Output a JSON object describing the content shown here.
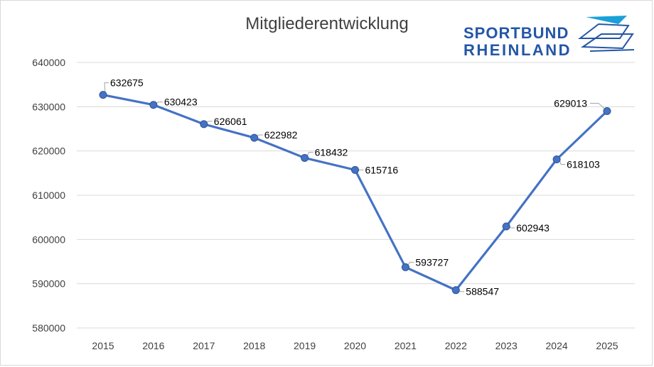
{
  "chart_data": {
    "type": "line",
    "title": "Mitgliederentwicklung",
    "xlabel": "",
    "ylabel": "",
    "categories": [
      "2015",
      "2016",
      "2017",
      "2018",
      "2019",
      "2020",
      "2021",
      "2022",
      "2023",
      "2024",
      "2025"
    ],
    "series": [
      {
        "values": [
          632675,
          630423,
          626061,
          622982,
          618432,
          615716,
          593727,
          588547,
          602943,
          618103,
          629013
        ],
        "color": "#4472c4"
      }
    ],
    "ylim": [
      580000,
      640000
    ],
    "yticks": [
      "580000",
      "590000",
      "600000",
      "610000",
      "620000",
      "630000",
      "640000"
    ],
    "grid": true,
    "data_labels": true
  },
  "logo": {
    "line1": "SPORTBUND",
    "line2": "RHEINLAND",
    "color": "#2456a6",
    "accent": "#1aa0d8"
  }
}
